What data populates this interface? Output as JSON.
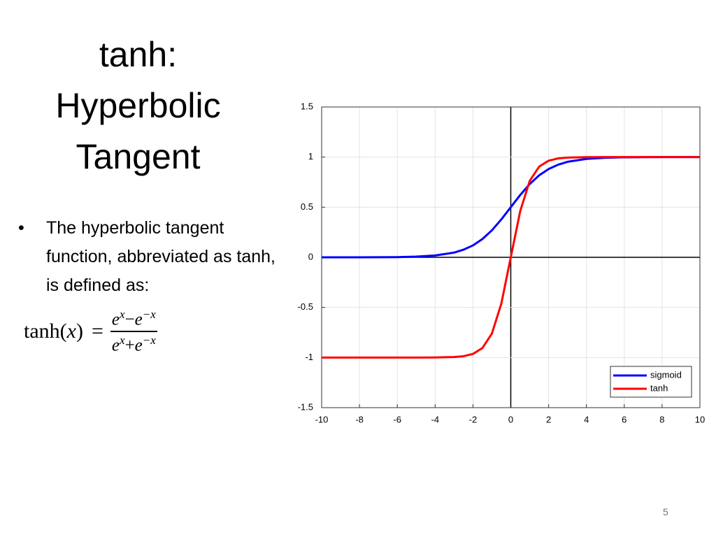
{
  "title_lines": [
    "tanh:",
    "Hyperbolic",
    "Tangent"
  ],
  "bullet": "The hyperbolic tangent function, abbreviated as tanh, is defined as:",
  "formula": {
    "lhs_func": "tanh",
    "lhs_open": "(",
    "lhs_var": "x",
    "lhs_close": ")",
    "equals": "=",
    "numerator": [
      "e",
      "x",
      "−",
      "e",
      "−x"
    ],
    "denominator": [
      "e",
      "x",
      "+",
      "e",
      "−x"
    ]
  },
  "page_number": "5",
  "chart_data": {
    "type": "line",
    "x": [
      -10,
      -8,
      -6,
      -5,
      -4,
      -3,
      -2.5,
      -2,
      -1.5,
      -1,
      -0.5,
      0,
      0.5,
      1,
      1.5,
      2,
      2.5,
      3,
      4,
      5,
      6,
      8,
      10
    ],
    "series": [
      {
        "name": "sigmoid",
        "color": "#0000ff",
        "values": [
          0.0,
          0.0,
          0.002,
          0.007,
          0.018,
          0.047,
          0.076,
          0.119,
          0.182,
          0.269,
          0.378,
          0.5,
          0.622,
          0.731,
          0.818,
          0.881,
          0.924,
          0.953,
          0.982,
          0.993,
          0.998,
          1.0,
          1.0
        ]
      },
      {
        "name": "tanh",
        "color": "#ff0000",
        "values": [
          -1,
          -1,
          -1,
          -1,
          -0.999,
          -0.995,
          -0.987,
          -0.964,
          -0.905,
          -0.762,
          -0.462,
          0,
          0.462,
          0.762,
          0.905,
          0.964,
          0.987,
          0.995,
          0.999,
          1,
          1,
          1,
          1
        ]
      }
    ],
    "xlim": [
      -10,
      10
    ],
    "xticks": [
      -10,
      -8,
      -6,
      -4,
      -2,
      0,
      2,
      4,
      6,
      8,
      10
    ],
    "ylim": [
      -1.5,
      1.5
    ],
    "yticks": [
      -1.5,
      -1,
      -0.5,
      0,
      0.5,
      1,
      1.5
    ],
    "grid": true,
    "legend": "lower right"
  }
}
